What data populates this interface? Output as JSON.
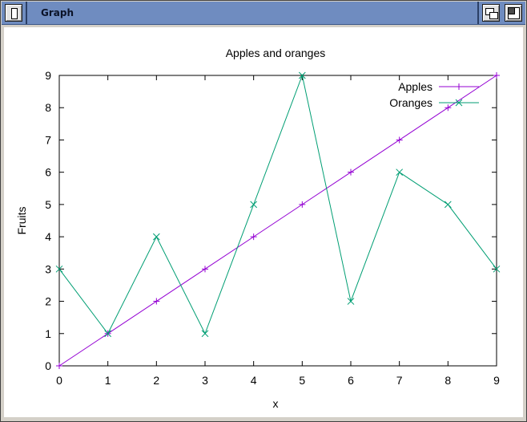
{
  "window": {
    "title": "Graph"
  },
  "colors": {
    "apples": "#9400d3",
    "oranges": "#009e73"
  },
  "chart_data": {
    "type": "line",
    "title": "Apples and oranges",
    "xlabel": "x",
    "ylabel": "Fruits",
    "xlim": [
      0,
      9
    ],
    "ylim": [
      0,
      9
    ],
    "x": [
      0,
      1,
      2,
      3,
      4,
      5,
      6,
      7,
      8,
      9
    ],
    "xticks": [
      "0",
      "1",
      "2",
      "3",
      "4",
      "5",
      "6",
      "7",
      "8",
      "9"
    ],
    "yticks": [
      "0",
      "1",
      "2",
      "3",
      "4",
      "5",
      "6",
      "7",
      "8",
      "9"
    ],
    "grid": false,
    "legend": "top-right",
    "series": [
      {
        "name": "Apples",
        "marker": "plus",
        "values": [
          0,
          1,
          2,
          3,
          4,
          5,
          6,
          7,
          8,
          9
        ]
      },
      {
        "name": "Oranges",
        "marker": "cross",
        "values": [
          3,
          1,
          4,
          1,
          5,
          9,
          2,
          6,
          5,
          3
        ]
      }
    ]
  }
}
